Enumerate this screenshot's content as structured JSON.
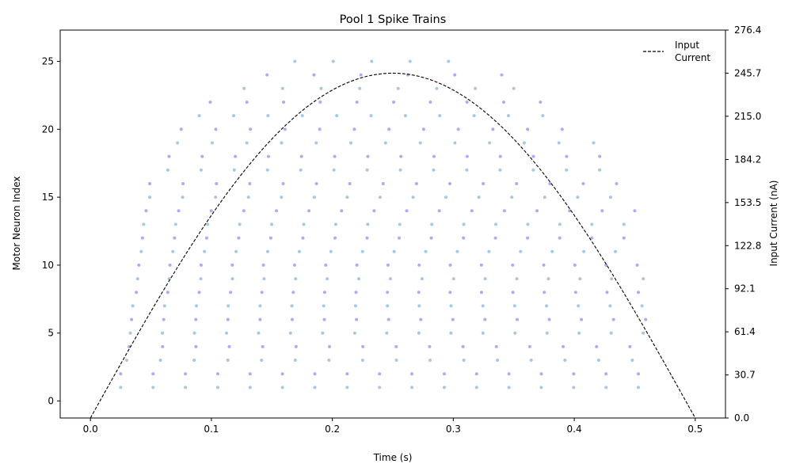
{
  "chart_data": {
    "type": "scatter",
    "title": "Pool 1 Spike Trains",
    "xlabel": "Time (s)",
    "ylabel": "Motor Neuron Index",
    "y2label": "Input Current (nA)",
    "xlim": [
      -0.025,
      0.525
    ],
    "ylim": [
      -1.25,
      27.3
    ],
    "y2lim": [
      0.0,
      276.4
    ],
    "x_ticks": [
      "0.0",
      "0.1",
      "0.2",
      "0.3",
      "0.4",
      "0.5"
    ],
    "y_ticks": [
      "0",
      "5",
      "10",
      "15",
      "20",
      "25"
    ],
    "y2_ticks": [
      "0.0",
      "30.7",
      "61.4",
      "92.1",
      "122.8",
      "153.5",
      "184.2",
      "215.0",
      "245.7",
      "276.4"
    ],
    "grid": false,
    "legend_position": "top-right",
    "series": [
      {
        "name": "Input Current",
        "kind": "line",
        "style": "dashed",
        "color": "#000000",
        "shape": "half-sine",
        "x_range": [
          0.0,
          0.5
        ],
        "peak_x": 0.25,
        "peak_y_right_axis": 245.7,
        "start_y_right_axis": 0.0,
        "end_y_right_axis": 0.0
      },
      {
        "kind": "scatter",
        "marker_colors": [
          "#a4c8e8",
          "#b4a8f4"
        ],
        "description_neuron_recruitment": "neuron index n fires from recruitment time to de-recruitment time at a regular rate",
        "neurons": [
          {
            "index": 1,
            "first": 0.025,
            "last": 0.453,
            "count": 17
          },
          {
            "index": 2,
            "first": 0.025,
            "last": 0.453,
            "count": 17
          },
          {
            "index": 3,
            "first": 0.03,
            "last": 0.448,
            "count": 16
          },
          {
            "index": 4,
            "first": 0.032,
            "last": 0.446,
            "count": 16
          },
          {
            "index": 5,
            "first": 0.033,
            "last": 0.457,
            "count": 17
          },
          {
            "index": 6,
            "first": 0.034,
            "last": 0.459,
            "count": 17
          },
          {
            "index": 7,
            "first": 0.035,
            "last": 0.456,
            "count": 17
          },
          {
            "index": 8,
            "first": 0.038,
            "last": 0.453,
            "count": 17
          },
          {
            "index": 9,
            "first": 0.039,
            "last": 0.457,
            "count": 17
          },
          {
            "index": 10,
            "first": 0.04,
            "last": 0.452,
            "count": 17
          },
          {
            "index": 11,
            "first": 0.042,
            "last": 0.434,
            "count": 16
          },
          {
            "index": 12,
            "first": 0.043,
            "last": 0.441,
            "count": 16
          },
          {
            "index": 13,
            "first": 0.044,
            "last": 0.441,
            "count": 16
          },
          {
            "index": 14,
            "first": 0.046,
            "last": 0.45,
            "count": 16
          },
          {
            "index": 15,
            "first": 0.049,
            "last": 0.43,
            "count": 15
          },
          {
            "index": 16,
            "first": 0.049,
            "last": 0.435,
            "count": 15
          },
          {
            "index": 17,
            "first": 0.064,
            "last": 0.421,
            "count": 14
          },
          {
            "index": 18,
            "first": 0.065,
            "last": 0.421,
            "count": 14
          },
          {
            "index": 19,
            "first": 0.072,
            "last": 0.416,
            "count": 13
          },
          {
            "index": 20,
            "first": 0.075,
            "last": 0.39,
            "count": 12
          },
          {
            "index": 21,
            "first": 0.09,
            "last": 0.374,
            "count": 11
          },
          {
            "index": 22,
            "first": 0.099,
            "last": 0.372,
            "count": 10
          },
          {
            "index": 23,
            "first": 0.127,
            "last": 0.35,
            "count": 8
          },
          {
            "index": 24,
            "first": 0.146,
            "last": 0.34,
            "count": 6
          },
          {
            "index": 25,
            "first": 0.169,
            "last": 0.296,
            "count": 5
          }
        ]
      }
    ]
  }
}
